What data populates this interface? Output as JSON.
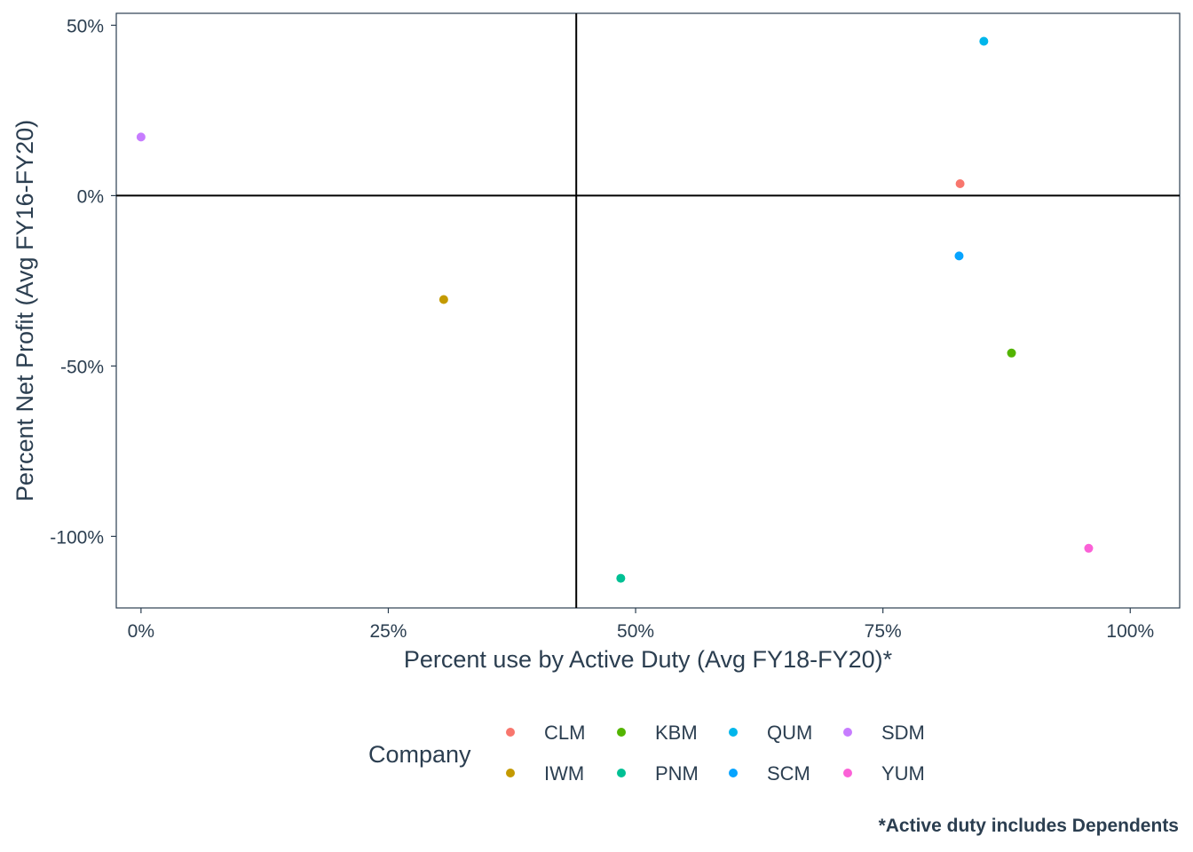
{
  "chart_data": {
    "type": "scatter",
    "xlabel": "Percent use by Active Duty (Avg FY18-FY20)*",
    "ylabel": "Percent Net Profit (Avg FY16-FY20)",
    "xlim": [
      -0.025,
      1.05
    ],
    "ylim": [
      -1.21,
      0.535
    ],
    "x_ticks": [
      {
        "value": 0,
        "label": "0%"
      },
      {
        "value": 0.25,
        "label": "25%"
      },
      {
        "value": 0.5,
        "label": "50%"
      },
      {
        "value": 0.75,
        "label": "75%"
      },
      {
        "value": 1.0,
        "label": "100%"
      }
    ],
    "y_ticks": [
      {
        "value": 0.5,
        "label": "50%"
      },
      {
        "value": 0,
        "label": "0%"
      },
      {
        "value": -0.5,
        "label": "-50%"
      },
      {
        "value": -1.0,
        "label": "-100%"
      }
    ],
    "reference_lines": {
      "x": 0.44,
      "y": 0
    },
    "grid": false,
    "legend": {
      "title": "Company",
      "position": "bottom"
    },
    "series": [
      {
        "name": "CLM",
        "color": "#F8766D",
        "x": 0.828,
        "y": 0.035
      },
      {
        "name": "IWM",
        "color": "#C49A00",
        "x": 0.306,
        "y": -0.305
      },
      {
        "name": "KBM",
        "color": "#53B400",
        "x": 0.88,
        "y": -0.462
      },
      {
        "name": "PNM",
        "color": "#00C094",
        "x": 0.485,
        "y": -1.123
      },
      {
        "name": "QUM",
        "color": "#00B6EB",
        "x": 0.852,
        "y": 0.453
      },
      {
        "name": "SCM",
        "color": "#06A4FF",
        "x": 0.827,
        "y": -0.177
      },
      {
        "name": "SDM",
        "color": "#C77CFF",
        "x": 0.0,
        "y": 0.172
      },
      {
        "name": "YUM",
        "color": "#FB61D7",
        "x": 0.958,
        "y": -1.035
      }
    ]
  },
  "caption": "*Active duty includes Dependents"
}
